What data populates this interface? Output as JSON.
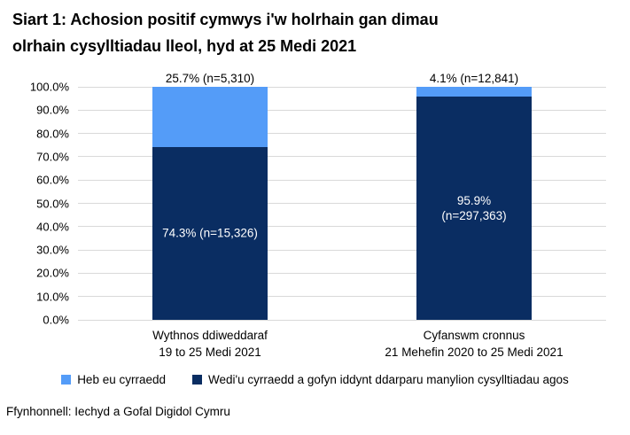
{
  "title": {
    "lines": [
      "Siart 1: Achosion positif cymwys i'w holrhain gan dimau",
      "olrhain cysylltiadau lleol, hyd at 25 Medi 2021"
    ]
  },
  "source": "Ffynhonnell: Iechyd a Gofal Digidol Cymru",
  "colors": {
    "reached": "#0A2D62",
    "not_reached": "#549CF8",
    "gridline": "#D9D9D9",
    "inside_label_text": "#FFFFFF",
    "text": "#000000",
    "background": "#FFFFFF"
  },
  "legend": {
    "items": [
      {
        "label": "Heb eu cyrraedd",
        "color": "#549CF8"
      },
      {
        "label": "Wedi'u cyrraedd a gofyn iddynt ddarparu manylion cysylltiadau agos",
        "color": "#0A2D62"
      }
    ]
  },
  "y_axis": {
    "tick_labels_top_to_bottom": [
      "100.0%",
      "90.0%",
      "80.0%",
      "70.0%",
      "60.0%",
      "50.0%",
      "40.0%",
      "30.0%",
      "20.0%",
      "10.0%",
      "0.0%"
    ]
  },
  "chart_data": {
    "type": "bar",
    "stacked": true,
    "title": "Siart 1: Achosion positif cymwys i'w holrhain gan dimau olrhain cysylltiadau lleol, hyd at 25 Medi 2021",
    "categories": [
      "Wythnos ddiweddaraf\n19 to 25 Medi 2021",
      "Cyfanswm cronnus\n21 Mehefin 2020 to 25 Medi 2021"
    ],
    "series": [
      {
        "name": "Wedi'u cyrraedd a gofyn iddynt ddarparu manylion cysylltiadau agos",
        "values": [
          74.3,
          95.9
        ],
        "counts": [
          15326,
          297363
        ],
        "color": "#0A2D62"
      },
      {
        "name": "Heb eu cyrraedd",
        "values": [
          25.7,
          4.1
        ],
        "counts": [
          5310,
          12841
        ],
        "color": "#549CF8"
      }
    ],
    "bar_labels": {
      "above": [
        "25.7% (n=5,310)",
        "4.1% (n=12,841)"
      ],
      "inside": [
        "74.3% (n=15,326)",
        "95.9%\n(n=297,363)"
      ]
    },
    "ylim": [
      0,
      100
    ],
    "ytick_step": 10,
    "grid": true,
    "legend_position": "bottom"
  }
}
